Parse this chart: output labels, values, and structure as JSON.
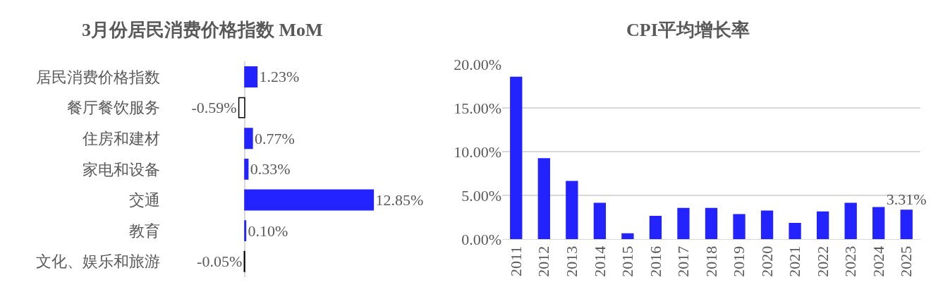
{
  "chart_data": [
    {
      "type": "bar",
      "orientation": "horizontal",
      "title": "3月份居民消费价格指数 MoM",
      "categories": [
        "居民消费价格指数",
        "餐厅餐饮服务",
        "住房和建材",
        "家电和设备",
        "交通",
        "教育",
        "文化、娱乐和旅游"
      ],
      "values": [
        1.23,
        -0.59,
        0.77,
        0.33,
        12.85,
        0.1,
        -0.05
      ],
      "value_labels": [
        "1.23%",
        "-0.59%",
        "0.77%",
        "0.33%",
        "12.85%",
        "0.10%",
        "-0.05%"
      ],
      "colors": [
        "#2323ff",
        "#ffffff",
        "#2323ff",
        "#2323ff",
        "#2323ff",
        "#2323ff",
        "#ffffff"
      ],
      "grid": false
    },
    {
      "type": "bar",
      "title": "CPI平均增长率",
      "categories": [
        "2011",
        "2012",
        "2013",
        "2014",
        "2015",
        "2016",
        "2017",
        "2018",
        "2019",
        "2020",
        "2021",
        "2022",
        "2023",
        "2024",
        "2025"
      ],
      "values": [
        18.5,
        9.2,
        6.6,
        4.1,
        0.6,
        2.6,
        3.5,
        3.5,
        2.8,
        3.2,
        1.8,
        3.1,
        4.1,
        3.6,
        3.31
      ],
      "value_labels": [
        null,
        null,
        null,
        null,
        null,
        null,
        null,
        null,
        null,
        null,
        null,
        null,
        null,
        null,
        "3.31%"
      ],
      "color": "#2323ff",
      "ylim": [
        0,
        20
      ],
      "yticks": [
        {
          "value": 0,
          "label": "0.00%"
        },
        {
          "value": 5,
          "label": "5.00%"
        },
        {
          "value": 10,
          "label": "10.00%"
        },
        {
          "value": 15,
          "label": "15.00%"
        },
        {
          "value": 20,
          "label": "20.00%"
        }
      ],
      "grid": "y"
    }
  ]
}
